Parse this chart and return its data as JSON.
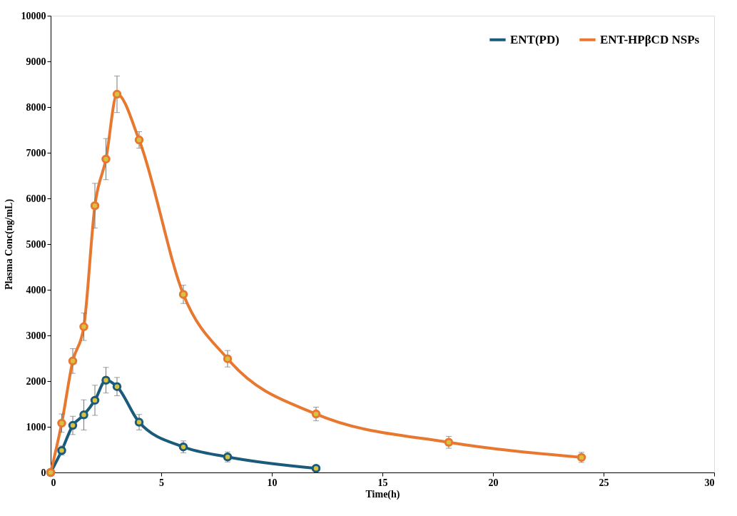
{
  "chart_data": {
    "type": "line",
    "xlabel": "Time(h)",
    "ylabel": "Plasma Conc(ng/mL)",
    "xlim": [
      0,
      30
    ],
    "xticks": [
      0,
      5,
      10,
      15,
      20,
      25,
      30
    ],
    "ylim": [
      0,
      10000
    ],
    "yticks": [
      0,
      1000,
      2000,
      3000,
      4000,
      5000,
      6000,
      7000,
      8000,
      9000,
      10000
    ],
    "grid": false,
    "legend": "top right",
    "marker": "circle",
    "line_style": "solid",
    "series": [
      {
        "name": "ENT(PD)",
        "color": "#1a5a7a",
        "x": [
          0,
          0.5,
          1,
          1.5,
          2,
          2.5,
          3,
          4,
          6,
          8,
          12
        ],
        "values": [
          0,
          480,
          1030,
          1260,
          1580,
          2020,
          1880,
          1100,
          560,
          340,
          90
        ],
        "errors": [
          null,
          100,
          200,
          330,
          330,
          280,
          200,
          170,
          130,
          110,
          50
        ]
      },
      {
        "name": "ENT-HPβCD NSPs",
        "color": "#e87830",
        "x": [
          0,
          0.5,
          1,
          1.5,
          2,
          2.5,
          3,
          4,
          6,
          8,
          12,
          18,
          24
        ],
        "values": [
          0,
          1080,
          2440,
          3190,
          5840,
          6860,
          8280,
          7280,
          3900,
          2490,
          1280,
          660,
          330
        ],
        "errors": [
          null,
          200,
          270,
          300,
          490,
          450,
          400,
          180,
          200,
          180,
          150,
          130,
          110
        ]
      }
    ]
  }
}
